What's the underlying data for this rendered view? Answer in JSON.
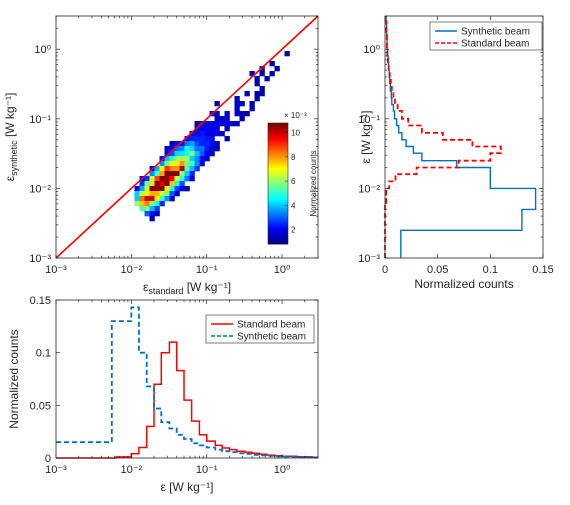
{
  "colors": {
    "standard": "#ff0000",
    "synthetic": "#0072bd",
    "axis": "#262626"
  },
  "chart_data": [
    {
      "type": "heatmap",
      "xlabel": {
        "prefix": "ε",
        "sub": "standard",
        "suffix": " [W kg⁻¹]"
      },
      "ylabel": {
        "prefix": "ε",
        "sub": "synthetic",
        "suffix": " [W kg⁻¹]"
      },
      "xscale": "log",
      "yscale": "log",
      "xlim": [
        0.001,
        3
      ],
      "ylim": [
        0.001,
        3
      ],
      "xticks": [
        0.001,
        0.01,
        0.1,
        1
      ],
      "yticks": [
        0.001,
        0.01,
        0.1,
        1
      ],
      "xticklabels": [
        "10⁻³",
        "10⁻²",
        "10⁻¹",
        "10⁰"
      ],
      "yticklabels": [
        "10⁻³",
        "10⁻²",
        "10⁻¹",
        "10⁰"
      ],
      "reference_line": "1:1",
      "colorbar": {
        "label": "Normalized counts",
        "multiplier": "× 10⁻³",
        "ticks": [
          "2",
          "4",
          "6",
          "8",
          "10"
        ],
        "tick_values": [
          2,
          4,
          6,
          8,
          10
        ],
        "range": [
          0.8,
          10.8
        ],
        "colormap": "jet"
      },
      "grid": false
    },
    {
      "type": "line",
      "orientation": "vertical-histogram",
      "xlabel": "Normalized counts",
      "ylabel": {
        "prefix": "ε",
        "suffix": " [W kg⁻¹]"
      },
      "xlim": [
        0,
        0.15
      ],
      "ylim": [
        0.001,
        3
      ],
      "yscale": "log",
      "xticks": [
        "0",
        "0.05",
        "0.1",
        "0.15"
      ],
      "xtick_values": [
        0,
        0.05,
        0.1,
        0.15
      ],
      "yticks": [
        0.001,
        0.01,
        0.1,
        1
      ],
      "yticklabels": [
        "10⁻³",
        "10⁻²",
        "10⁻¹",
        "10⁰"
      ],
      "legend": "top-right",
      "series": [
        {
          "name": "Synthetic beam",
          "style": "solid",
          "bin_edges": [
            0.00063,
            0.0025,
            0.005,
            0.01,
            0.02,
            0.025,
            0.032,
            0.04,
            0.05,
            0.063,
            0.08,
            0.1,
            0.13,
            0.16,
            0.2,
            0.25,
            0.32,
            0.4,
            0.5,
            0.63,
            0.8,
            1,
            1.6,
            2.5,
            3
          ],
          "counts": [
            0.015,
            0.13,
            0.143,
            0.1,
            0.068,
            0.035,
            0.027,
            0.02,
            0.016,
            0.013,
            0.011,
            0.009,
            0.008,
            0.0065,
            0.006,
            0.005,
            0.0045,
            0.004,
            0.0035,
            0.003,
            0.0025,
            0.002,
            0.0015,
            0.001
          ]
        },
        {
          "name": "Standard beam",
          "style": "dashed",
          "bin_edges": [
            0.001,
            0.0063,
            0.01,
            0.0126,
            0.016,
            0.02,
            0.025,
            0.032,
            0.04,
            0.05,
            0.063,
            0.08,
            0.1,
            0.13,
            0.16,
            0.2,
            0.25,
            0.32,
            0.4,
            0.5,
            0.63,
            0.8,
            1,
            1.6,
            2.5,
            3
          ],
          "counts": [
            0,
            0.001,
            0.004,
            0.01,
            0.03,
            0.07,
            0.1,
            0.11,
            0.083,
            0.055,
            0.035,
            0.022,
            0.016,
            0.012,
            0.0095,
            0.008,
            0.0065,
            0.0055,
            0.0045,
            0.0035,
            0.0028,
            0.0022,
            0.0017,
            0.0012,
            0.0008
          ]
        }
      ]
    },
    {
      "type": "line",
      "orientation": "histogram",
      "xlabel": {
        "prefix": "ε",
        "suffix": " [W kg⁻¹]"
      },
      "ylabel": "Normalized counts",
      "xscale": "log",
      "xlim": [
        0.001,
        3
      ],
      "ylim": [
        0,
        0.15
      ],
      "xticks": [
        0.001,
        0.01,
        0.1,
        1
      ],
      "xticklabels": [
        "10⁻³",
        "10⁻²",
        "10⁻¹",
        "10⁰"
      ],
      "yticks": [
        "0",
        "0.05",
        "0.1",
        "0.15"
      ],
      "ytick_values": [
        0,
        0.05,
        0.1,
        0.15
      ],
      "legend": "top-right",
      "series": [
        {
          "name": "Standard beam",
          "style": "solid",
          "bin_edges": [
            0.001,
            0.0063,
            0.01,
            0.0126,
            0.016,
            0.02,
            0.025,
            0.032,
            0.04,
            0.05,
            0.063,
            0.08,
            0.1,
            0.13,
            0.16,
            0.2,
            0.25,
            0.32,
            0.4,
            0.5,
            0.63,
            0.8,
            1,
            1.6,
            2.5,
            3
          ],
          "counts": [
            0,
            0.001,
            0.004,
            0.01,
            0.03,
            0.07,
            0.1,
            0.11,
            0.083,
            0.055,
            0.035,
            0.022,
            0.016,
            0.012,
            0.0095,
            0.008,
            0.0065,
            0.0055,
            0.0045,
            0.0035,
            0.0028,
            0.0022,
            0.0017,
            0.0012,
            0.0008
          ]
        },
        {
          "name": "Synthetic beam",
          "style": "dashed",
          "bin_edges": [
            0.001,
            0.0055,
            0.01,
            0.0126,
            0.016,
            0.02,
            0.025,
            0.032,
            0.04,
            0.05,
            0.063,
            0.08,
            0.1,
            0.13,
            0.16,
            0.2,
            0.25,
            0.32,
            0.4,
            0.5,
            0.63,
            0.8,
            1,
            1.6,
            2.5,
            3
          ],
          "counts": [
            0.015,
            0.13,
            0.143,
            0.1,
            0.068,
            0.047,
            0.034,
            0.028,
            0.022,
            0.018,
            0.014,
            0.012,
            0.01,
            0.008,
            0.0065,
            0.0055,
            0.0045,
            0.0038,
            0.003,
            0.0025,
            0.002,
            0.0016,
            0.0012,
            0.0008,
            0.0005
          ]
        }
      ]
    }
  ]
}
